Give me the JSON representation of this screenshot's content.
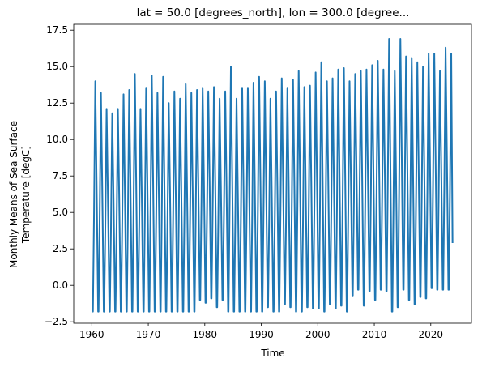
{
  "chart_data": {
    "type": "line",
    "title": "lat = 50.0 [degrees_north], lon = 300.0 [degree...",
    "xlabel": "Time",
    "ylabel_lines": [
      "Monthly Means of Sea Surface",
      "Temperature [degC]"
    ],
    "xlim": [
      1956.8,
      2027.2
    ],
    "ylim": [
      -2.6,
      17.9
    ],
    "xticks": [
      1960,
      1970,
      1980,
      1990,
      2000,
      2010,
      2020
    ],
    "xtick_labels": [
      "1960",
      "1970",
      "1980",
      "1990",
      "2000",
      "2010",
      "2020"
    ],
    "yticks": [
      -2.5,
      0.0,
      2.5,
      5.0,
      7.5,
      10.0,
      12.5,
      15.0,
      17.5
    ],
    "ytick_labels": [
      "−2.5",
      "0.0",
      "2.5",
      "5.0",
      "7.5",
      "10.0",
      "12.5",
      "15.0",
      "17.5"
    ],
    "grid": false,
    "series": [
      {
        "color": "#1f77b4",
        "start_year": 1960,
        "summer_peaks": [
          14.0,
          13.2,
          12.1,
          11.8,
          12.1,
          13.1,
          13.4,
          14.5,
          12.1,
          13.5,
          14.4,
          13.2,
          14.3,
          12.5,
          13.3,
          12.8,
          13.8,
          13.2,
          13.4,
          13.5,
          13.3,
          13.6,
          12.8,
          13.3,
          15.0,
          12.8,
          13.5,
          13.5,
          13.9,
          14.3,
          14.0,
          12.8,
          13.3,
          14.2,
          13.5,
          14.1,
          14.7,
          13.6,
          13.7,
          14.6,
          15.3,
          14.0,
          14.2,
          14.8,
          14.9,
          14.0,
          14.5,
          14.7,
          14.8,
          15.1,
          15.4,
          14.8,
          16.9,
          14.7,
          16.9,
          15.7,
          15.6,
          15.3,
          15.0,
          15.9,
          15.9,
          14.7,
          16.3,
          15.9,
          16.0
        ],
        "winter_troughs": [
          -1.8,
          -1.8,
          -1.8,
          -1.8,
          -1.8,
          -1.8,
          -1.8,
          -1.8,
          -1.8,
          -1.8,
          -1.8,
          -1.8,
          -1.8,
          -1.8,
          -1.8,
          -1.8,
          -1.8,
          -1.8,
          -1.8,
          -1.0,
          -1.2,
          -0.9,
          -1.5,
          -1.0,
          -1.8,
          -1.8,
          -1.8,
          -1.8,
          -1.8,
          -1.8,
          -1.8,
          -1.5,
          -1.8,
          -1.8,
          -1.3,
          -1.5,
          -1.8,
          -1.8,
          -1.5,
          -1.6,
          -1.6,
          -1.8,
          -1.3,
          -1.6,
          -1.4,
          -1.8,
          -0.7,
          -0.3,
          -1.4,
          -0.4,
          -1.0,
          -0.3,
          -0.4,
          -1.8,
          -1.5,
          -0.3,
          -1.0,
          -1.3,
          -0.8,
          -0.9,
          -0.2,
          -0.3,
          -0.3,
          -0.3
        ],
        "end_value": 2.9
      }
    ]
  }
}
